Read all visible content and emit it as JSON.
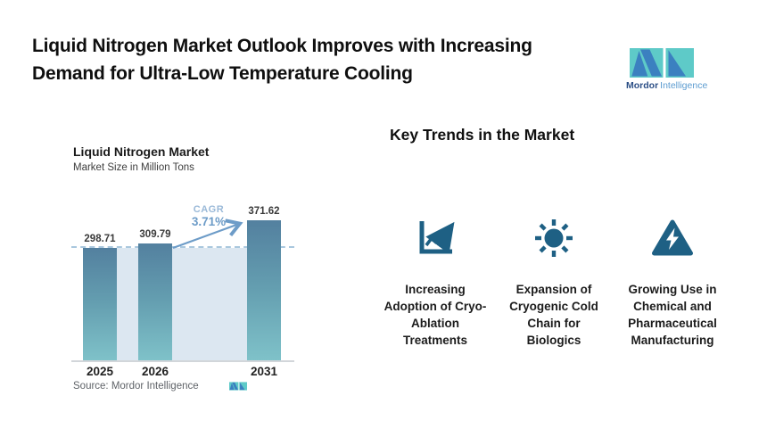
{
  "header": {
    "title_line1": "Liquid Nitrogen Market Outlook Improves with Increasing",
    "title_line2": "Demand for Ultra-Low Temperature Cooling"
  },
  "brand": {
    "name_bold": "Mordor",
    "name_light": "Intelligence"
  },
  "chart": {
    "title": "Liquid Nitrogen Market",
    "subtitle": "Market Size in Million Tons",
    "cagr_label": "CAGR",
    "cagr_value": "3.71%",
    "source": "Source: Mordor Intelligence"
  },
  "chart_data": {
    "type": "bar",
    "title": "Liquid Nitrogen Market",
    "subtitle": "Market Size in Million Tons",
    "unit": "Million Tons",
    "categories": [
      "2025",
      "2026",
      "2031"
    ],
    "values": [
      298.71,
      309.79,
      371.62
    ],
    "ylim": [
      0,
      430
    ],
    "grid": false,
    "legend": false,
    "annotations": {
      "cagr_label": "CAGR",
      "cagr_value": "3.71%",
      "reference_line_at": 298.71
    }
  },
  "trends": {
    "heading": "Key Trends in the Market",
    "items": [
      {
        "icon": "line-chart-icon",
        "label": "Increasing Adoption of Cryo-Ablation Treatments"
      },
      {
        "icon": "sun-icon",
        "label": "Expansion of Cryogenic Cold Chain for Biologics"
      },
      {
        "icon": "warning-bolt-icon",
        "label": "Growing Use in Chemical and Pharmaceutical Manufacturing"
      }
    ]
  },
  "colors": {
    "bar_top": "#53809f",
    "bar_bottom": "#7fc2c9",
    "projection_band": "#dce7f1",
    "dashed_line": "#a9c7de",
    "accent_blue": "#6d9cc8",
    "icon_blue": "#1e6084",
    "logo_teal": "#5ecac8",
    "logo_blue": "#3b80c0",
    "text_dark": "#1a1a1a",
    "source_gray": "#5f6368"
  }
}
